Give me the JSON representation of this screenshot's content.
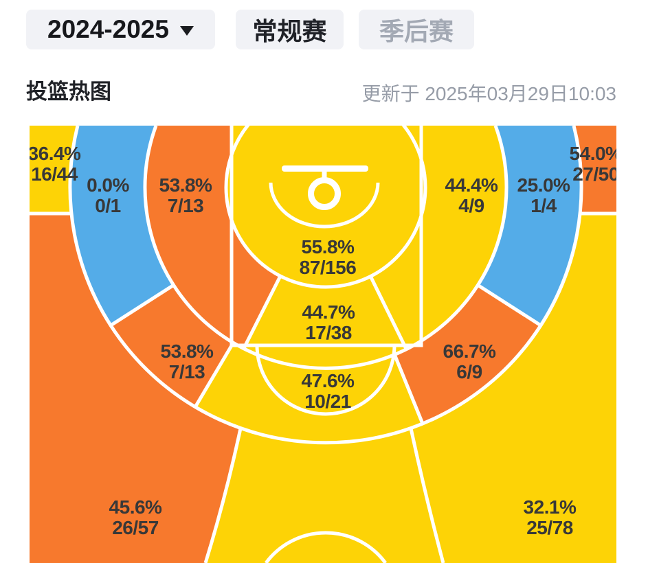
{
  "header": {
    "season_label": "2024-2025",
    "regular_label": "常规赛",
    "playoff_label": "季后赛",
    "title": "投篮热图",
    "updated": "更新于 2025年03月29日10:03"
  },
  "palette": {
    "hot": "#F7792D",
    "warm": "#FDD306",
    "cold": "#54ACE8",
    "line": "#FFFFFF",
    "label": "#383838"
  },
  "chart_data": {
    "type": "heatmap",
    "title": "投篮热图",
    "legend": "zones colored by shooting efficiency: orange=hot, yellow=warm, blue=cold",
    "zones": [
      {
        "id": "corner3-left",
        "temp": "warm",
        "pct": "36.4%",
        "made_att": "16/44",
        "made": 16,
        "att": 44,
        "label": [
          79,
          233
        ]
      },
      {
        "id": "baseline-mid-left",
        "temp": "cold",
        "pct": "0.0%",
        "made_att": "0/1",
        "made": 0,
        "att": 1,
        "label": [
          157,
          279
        ]
      },
      {
        "id": "elbow-mid-left",
        "temp": "hot",
        "pct": "53.8%",
        "made_att": "7/13",
        "made": 7,
        "att": 13,
        "label": [
          270,
          279
        ]
      },
      {
        "id": "close-range",
        "temp": "warm",
        "pct": "55.8%",
        "made_att": "87/156",
        "made": 87,
        "att": 156,
        "label": [
          477,
          369
        ]
      },
      {
        "id": "paint-low",
        "temp": "warm",
        "pct": "44.7%",
        "made_att": "17/38",
        "made": 17,
        "att": 38,
        "label": [
          478,
          464
        ]
      },
      {
        "id": "elbow-mid-right",
        "temp": "warm",
        "pct": "44.4%",
        "made_att": "4/9",
        "made": 4,
        "att": 9,
        "label": [
          686,
          279
        ]
      },
      {
        "id": "baseline-mid-right",
        "temp": "cold",
        "pct": "25.0%",
        "made_att": "1/4",
        "made": 1,
        "att": 4,
        "label": [
          791,
          279
        ]
      },
      {
        "id": "corner3-right",
        "temp": "hot",
        "pct": "54.0%",
        "made_att": "27/50",
        "made": 27,
        "att": 50,
        "label": [
          867,
          233
        ]
      },
      {
        "id": "wing-mid-left",
        "temp": "hot",
        "pct": "53.8%",
        "made_att": "7/13",
        "made": 7,
        "att": 13,
        "label": [
          272,
          521
        ]
      },
      {
        "id": "top-key-mid",
        "temp": "warm",
        "pct": "47.6%",
        "made_att": "10/21",
        "made": 10,
        "att": 21,
        "label": [
          477,
          564
        ]
      },
      {
        "id": "wing-mid-right",
        "temp": "hot",
        "pct": "66.7%",
        "made_att": "6/9",
        "made": 6,
        "att": 9,
        "label": [
          683,
          521
        ]
      },
      {
        "id": "wing3-left",
        "temp": "hot",
        "pct": "45.6%",
        "made_att": "26/57",
        "made": 26,
        "att": 57,
        "label": [
          197,
          748
        ]
      },
      {
        "id": "wing3-right",
        "temp": "warm",
        "pct": "32.1%",
        "made_att": "25/78",
        "made": 25,
        "att": 78,
        "label": [
          800,
          748
        ]
      },
      {
        "id": "top3-center",
        "temp": "warm",
        "pct": null,
        "made_att": null,
        "label": null
      }
    ]
  }
}
